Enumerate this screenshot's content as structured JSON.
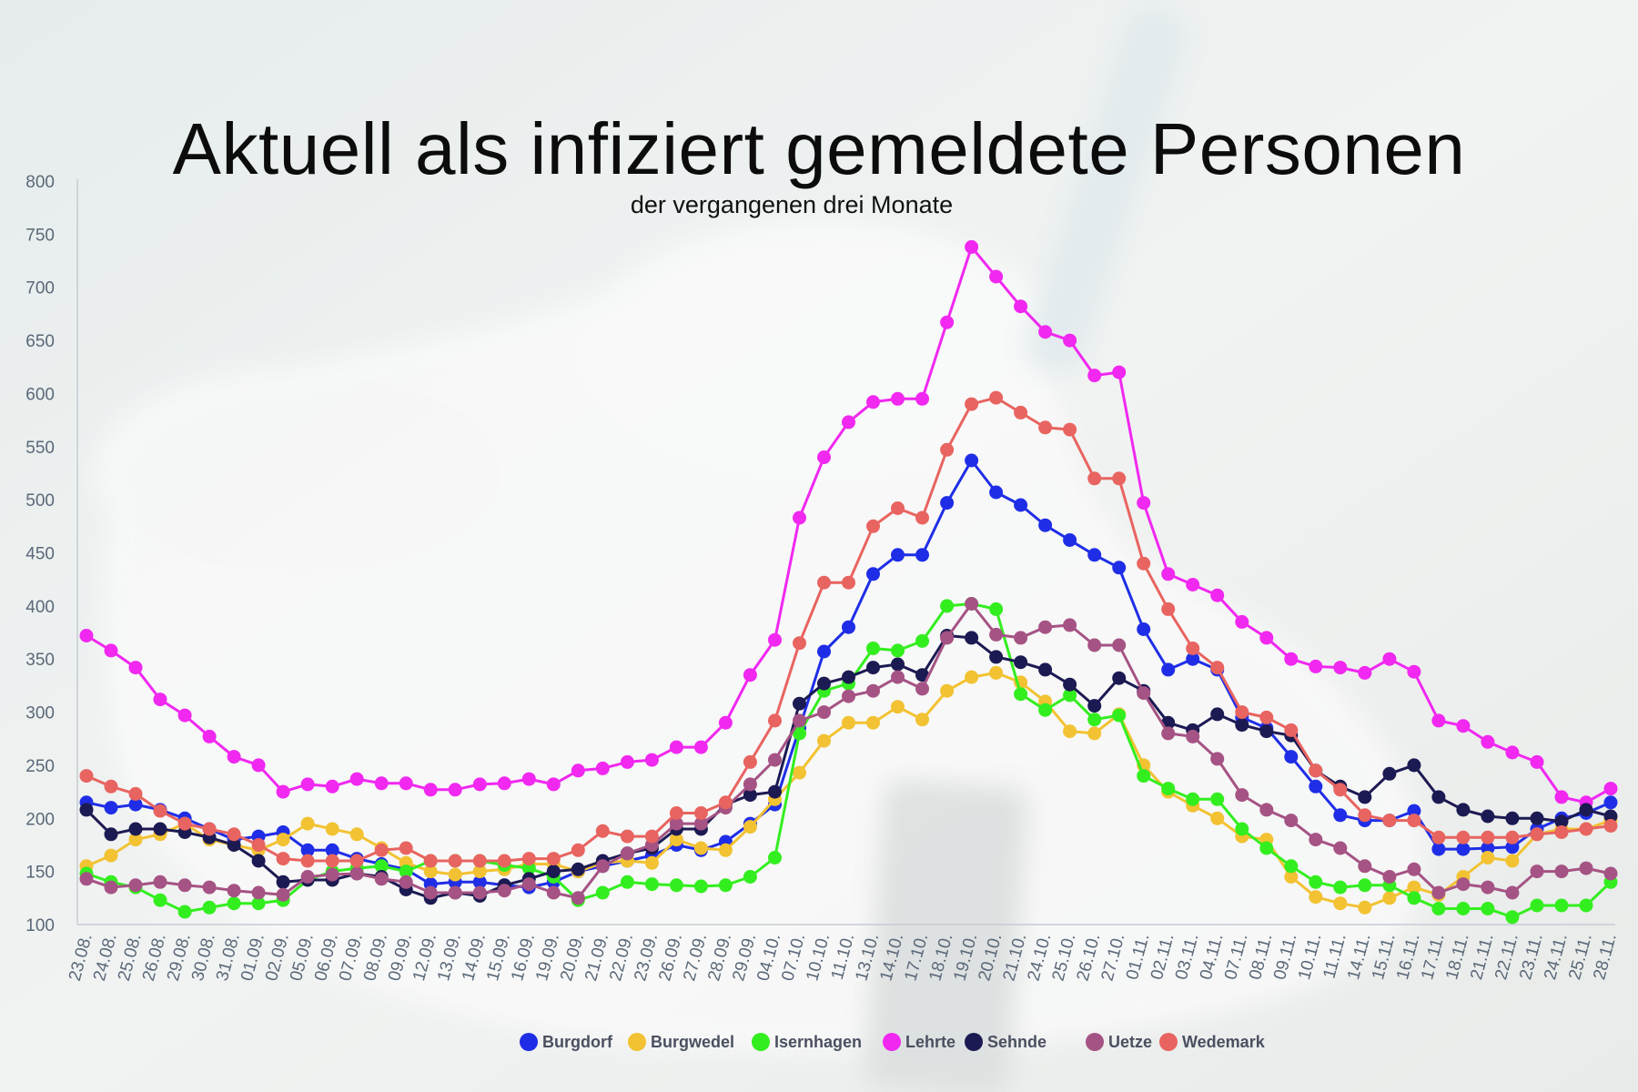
{
  "chart_data": {
    "type": "line",
    "title": "Aktuell als infiziert gemeldete Personen",
    "subtitle": "der vergangenen drei Monate",
    "xlabel": "",
    "ylabel": "",
    "ylim": [
      100,
      800
    ],
    "yticks": [
      100,
      150,
      200,
      250,
      300,
      350,
      400,
      450,
      500,
      550,
      600,
      650,
      700,
      750,
      800
    ],
    "grid": false,
    "legend_position": "bottom",
    "categories": [
      "23.08.",
      "24.08.",
      "25.08.",
      "26.08.",
      "29.08.",
      "30.08.",
      "31.08.",
      "01.09.",
      "02.09.",
      "05.09.",
      "06.09.",
      "07.09.",
      "08.09.",
      "09.09.",
      "12.09.",
      "13.09.",
      "14.09.",
      "15.09.",
      "16.09.",
      "19.09.",
      "20.09.",
      "21.09.",
      "22.09.",
      "23.09.",
      "26.09.",
      "27.09.",
      "28.09.",
      "29.09.",
      "04.10.",
      "07.10.",
      "10.10.",
      "11.10.",
      "13.10.",
      "14.10.",
      "17.10.",
      "18.10.",
      "19.10.",
      "20.10.",
      "21.10.",
      "24.10.",
      "25.10.",
      "26.10.",
      "27.10.",
      "01.11.",
      "02.11.",
      "03.11.",
      "04.11.",
      "07.11.",
      "08.11.",
      "09.11.",
      "10.11.",
      "11.11.",
      "14.11.",
      "15.11.",
      "16.11.",
      "17.11.",
      "18.11.",
      "21.11.",
      "22.11.",
      "23.11.",
      "24.11.",
      "25.11.",
      "28.11."
    ],
    "series": [
      {
        "name": "Burgdorf",
        "color": "#1f2ee6",
        "values": [
          215,
          210,
          213,
          208,
          200,
          190,
          180,
          183,
          187,
          170,
          170,
          162,
          157,
          152,
          138,
          140,
          140,
          137,
          135,
          140,
          150,
          155,
          160,
          165,
          175,
          170,
          178,
          195,
          213,
          285,
          357,
          380,
          430,
          448,
          448,
          497,
          537,
          507,
          495,
          476,
          462,
          448,
          436,
          378,
          340,
          350,
          340,
          295,
          285,
          258,
          230,
          203,
          198,
          198,
          207,
          171,
          171,
          172,
          173,
          190,
          200,
          205,
          215
        ]
      },
      {
        "name": "Burgwedel",
        "color": "#f2c232",
        "values": [
          155,
          165,
          180,
          185,
          195,
          180,
          175,
          170,
          180,
          195,
          190,
          185,
          172,
          158,
          150,
          147,
          150,
          152,
          157,
          157,
          150,
          158,
          160,
          158,
          180,
          172,
          170,
          192,
          218,
          243,
          273,
          290,
          290,
          305,
          293,
          320,
          333,
          337,
          328,
          310,
          282,
          280,
          298,
          250,
          225,
          212,
          200,
          183,
          180,
          145,
          126,
          120,
          116,
          125,
          135,
          128,
          145,
          163,
          160,
          185,
          190,
          190,
          198
        ]
      },
      {
        "name": "Isernhagen",
        "color": "#33ee1f",
        "values": [
          148,
          140,
          135,
          123,
          112,
          116,
          120,
          120,
          123,
          142,
          150,
          153,
          155,
          150,
          160,
          160,
          160,
          156,
          153,
          145,
          123,
          130,
          140,
          138,
          137,
          136,
          137,
          145,
          163,
          280,
          320,
          327,
          360,
          358,
          367,
          400,
          402,
          397,
          317,
          302,
          316,
          293,
          297,
          240,
          228,
          218,
          218,
          190,
          172,
          155,
          140,
          135,
          137,
          137,
          125,
          115,
          115,
          115,
          107,
          118,
          118,
          118,
          140
        ]
      },
      {
        "name": "Lehrte",
        "color": "#f028f0",
        "values": [
          372,
          358,
          342,
          312,
          297,
          277,
          258,
          250,
          225,
          232,
          230,
          237,
          233,
          233,
          227,
          227,
          232,
          233,
          237,
          232,
          245,
          247,
          253,
          255,
          267,
          267,
          290,
          335,
          368,
          483,
          540,
          573,
          592,
          595,
          595,
          667,
          738,
          710,
          682,
          658,
          650,
          617,
          620,
          497,
          430,
          420,
          410,
          385,
          370,
          350,
          343,
          342,
          337,
          350,
          338,
          292,
          287,
          272,
          262,
          253,
          220,
          215,
          228
        ]
      },
      {
        "name": "Sehnde",
        "color": "#1c1a52",
        "values": [
          208,
          185,
          190,
          190,
          187,
          182,
          175,
          160,
          140,
          142,
          142,
          148,
          145,
          133,
          125,
          130,
          127,
          137,
          143,
          150,
          152,
          160,
          167,
          172,
          190,
          190,
          213,
          222,
          225,
          308,
          327,
          333,
          342,
          345,
          335,
          372,
          370,
          352,
          347,
          340,
          326,
          306,
          332,
          320,
          290,
          283,
          298,
          288,
          282,
          278,
          245,
          230,
          220,
          242,
          250,
          220,
          208,
          202,
          200,
          200,
          197,
          208,
          202
        ]
      },
      {
        "name": "Uetze",
        "color": "#a55384",
        "values": [
          143,
          135,
          137,
          140,
          137,
          135,
          132,
          130,
          128,
          145,
          147,
          148,
          143,
          140,
          130,
          130,
          130,
          132,
          138,
          130,
          125,
          155,
          167,
          175,
          195,
          195,
          210,
          232,
          255,
          292,
          300,
          315,
          320,
          333,
          322,
          370,
          402,
          373,
          370,
          380,
          382,
          363,
          363,
          318,
          280,
          277,
          256,
          222,
          208,
          198,
          180,
          172,
          155,
          145,
          152,
          130,
          138,
          135,
          130,
          150,
          150,
          153,
          148
        ]
      },
      {
        "name": "Wedemark",
        "color": "#e86460",
        "values": [
          240,
          230,
          223,
          207,
          195,
          190,
          185,
          175,
          162,
          160,
          160,
          160,
          170,
          172,
          160,
          160,
          160,
          160,
          162,
          162,
          170,
          188,
          183,
          183,
          205,
          205,
          215,
          253,
          292,
          365,
          422,
          422,
          475,
          492,
          483,
          547,
          590,
          596,
          582,
          568,
          566,
          520,
          520,
          440,
          397,
          360,
          342,
          300,
          295,
          283,
          245,
          227,
          203,
          198,
          198,
          182,
          182,
          182,
          182,
          185,
          187,
          190,
          193
        ]
      }
    ]
  }
}
